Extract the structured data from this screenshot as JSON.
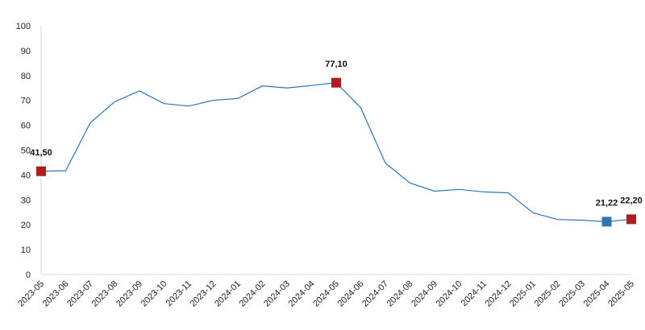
{
  "chart_data": {
    "type": "line",
    "title": "",
    "xlabel": "",
    "ylabel": "",
    "ylim": [
      0,
      100
    ],
    "yticks": [
      0,
      10,
      20,
      30,
      40,
      50,
      60,
      70,
      80,
      90,
      100
    ],
    "grid": false,
    "legend": "none",
    "categories": [
      "2023-05",
      "2023-06",
      "2023-07",
      "2023-08",
      "2023-09",
      "2023-10",
      "2023-11",
      "2023-12",
      "2024-01",
      "2024-02",
      "2024-03",
      "2024-04",
      "2024-05",
      "2024-06",
      "2024-07",
      "2024-08",
      "2024-09",
      "2024-10",
      "2024-11",
      "2024-12",
      "2025-01",
      "2025-02",
      "2025-03",
      "2025-04",
      "2025-05"
    ],
    "series": [
      {
        "values": [
          41.5,
          41.7,
          61.0,
          69.5,
          73.8,
          68.7,
          67.7,
          70.0,
          70.8,
          75.8,
          75.0,
          76.0,
          77.1,
          67.0,
          44.8,
          36.8,
          33.5,
          34.2,
          33.2,
          32.8,
          24.8,
          22.1,
          21.8,
          21.22,
          22.2
        ],
        "color": "#2e75b6"
      }
    ],
    "highlights": [
      {
        "index": 0,
        "label": "41,50",
        "color": "#b01c22"
      },
      {
        "index": 12,
        "label": "77,10",
        "color": "#b01c22"
      },
      {
        "index": 23,
        "label": "21,22",
        "color": "#2e75b6"
      },
      {
        "index": 24,
        "label": "22,20",
        "color": "#b01c22"
      }
    ]
  }
}
